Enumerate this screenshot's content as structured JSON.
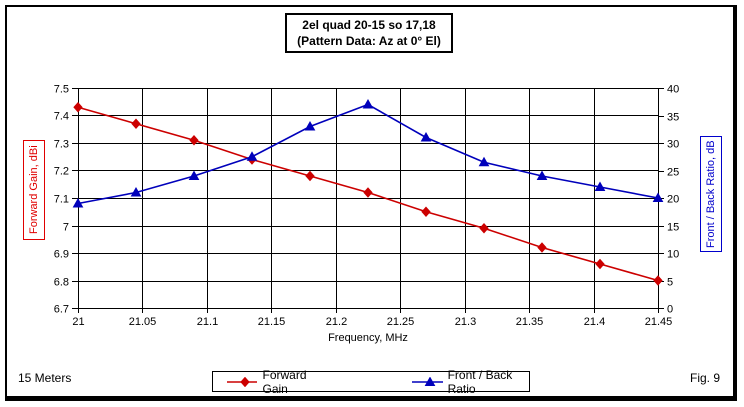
{
  "title": {
    "line1": "2el quad 20-15 so 17,18",
    "line2": "(Pattern Data: Az at 0° El)"
  },
  "footer": {
    "band_label": "15 Meters",
    "figure_label": "Fig. 9"
  },
  "legend": {
    "items": [
      {
        "label": "Forward Gain",
        "marker": "diamond",
        "color": "#cc0000"
      },
      {
        "label": "Front / Back Ratio",
        "marker": "triangle",
        "color": "#0000bb"
      }
    ]
  },
  "chart_data": {
    "type": "line",
    "title": "2el quad 20-15 so 17,18 (Pattern Data: Az at 0° El)",
    "xlabel": "Frequency, MHz",
    "xlim": [
      21,
      21.45
    ],
    "x_ticks": [
      21,
      21.05,
      21.1,
      21.15,
      21.2,
      21.25,
      21.3,
      21.35,
      21.4,
      21.45
    ],
    "grid": true,
    "left_axis": {
      "label": "Forward Gain, dBi",
      "min": 6.7,
      "max": 7.5,
      "ticks": [
        7.5,
        7.4,
        7.3,
        7.2,
        7.1,
        7,
        6.9,
        6.8,
        6.7
      ],
      "color": "#e00000"
    },
    "right_axis": {
      "label": "Front / Back Ratio, dB",
      "min": 0,
      "max": 40,
      "ticks": [
        40,
        35,
        30,
        25,
        20,
        15,
        10,
        5,
        0
      ],
      "color": "#0000cc"
    },
    "x": [
      21,
      21.045,
      21.09,
      21.135,
      21.18,
      21.225,
      21.27,
      21.315,
      21.36,
      21.405,
      21.45
    ],
    "series": [
      {
        "name": "Forward Gain",
        "axis": "left",
        "color": "#cc0000",
        "marker": "diamond",
        "values": [
          7.43,
          7.37,
          7.31,
          7.24,
          7.18,
          7.12,
          7.05,
          6.99,
          6.92,
          6.86,
          6.8
        ]
      },
      {
        "name": "Front / Back Ratio",
        "axis": "right",
        "color": "#0000bb",
        "marker": "triangle",
        "values": [
          19,
          21,
          24,
          27.5,
          33,
          37,
          31,
          26.5,
          24,
          22,
          20
        ]
      }
    ],
    "legend_position": "bottom"
  }
}
